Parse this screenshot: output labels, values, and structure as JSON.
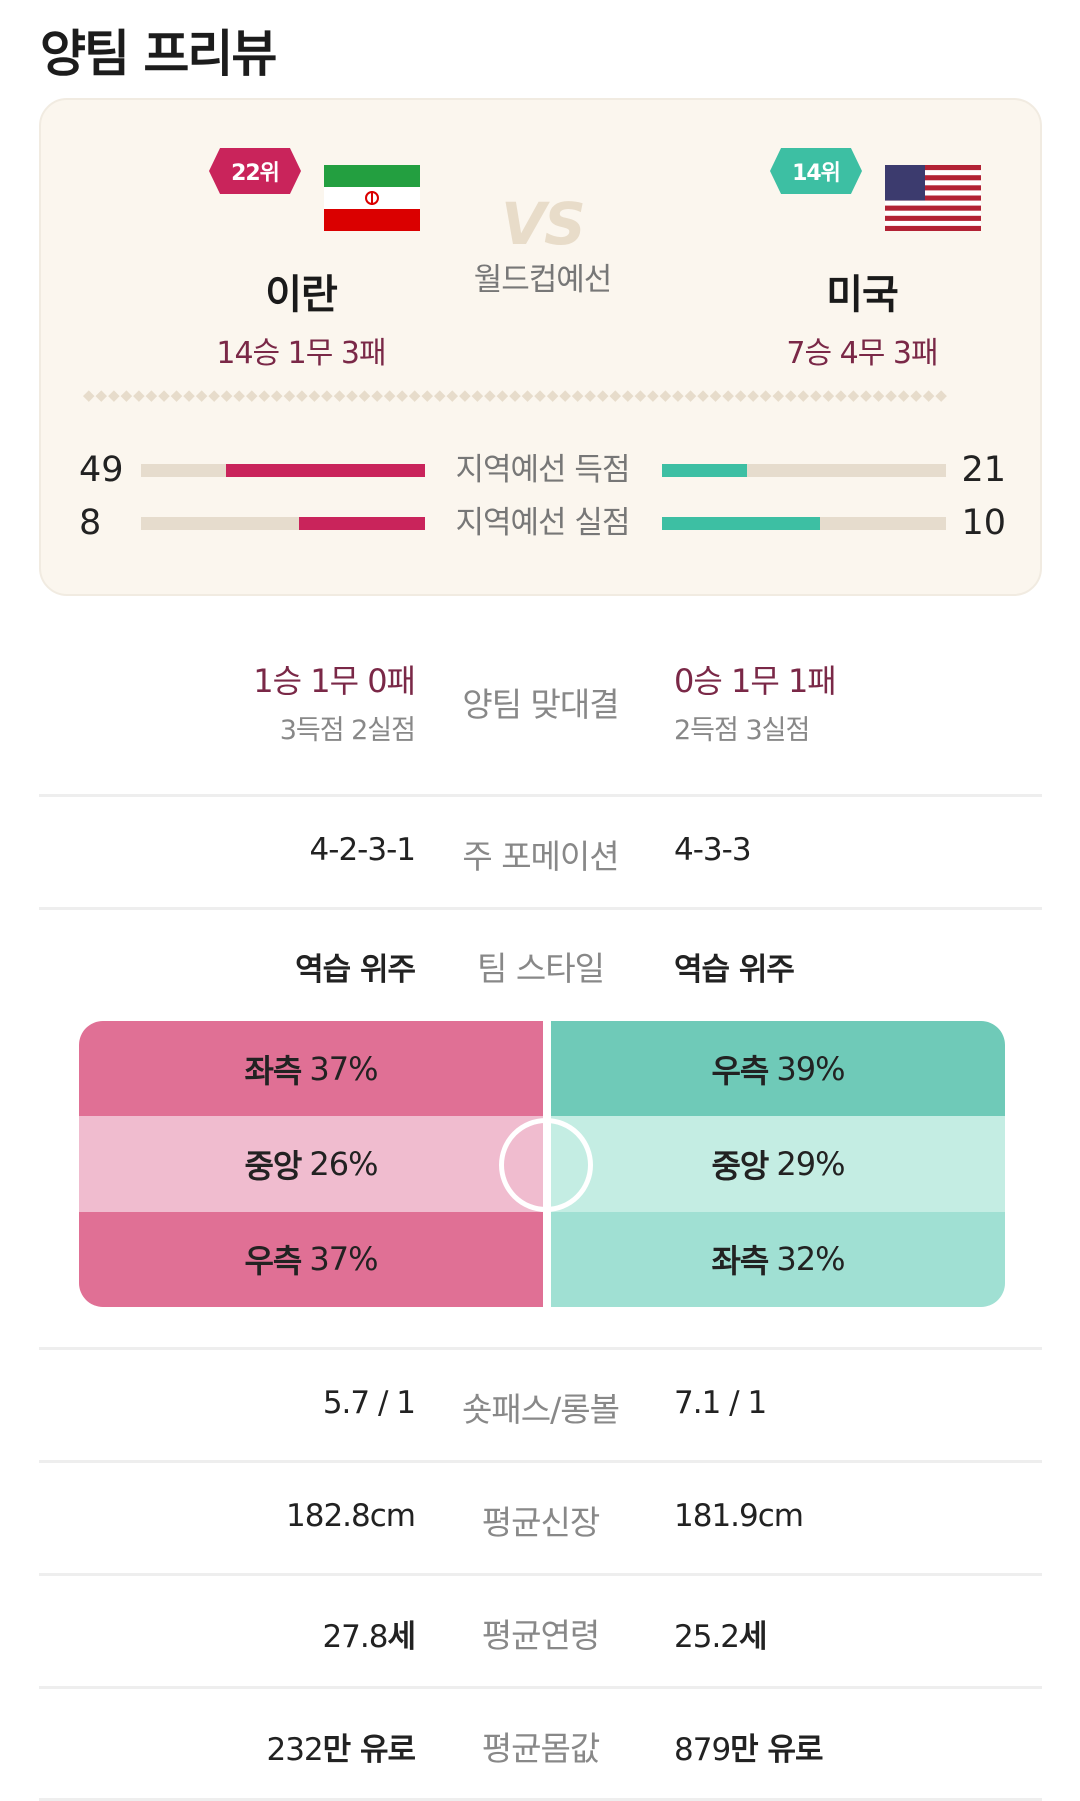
{
  "page_title": "양팀 프리뷰",
  "matchup": {
    "vs_text": "VS",
    "match_type": "월드컵예선",
    "home": {
      "rank": "22위",
      "name": "이란",
      "record": "14승 1무 3패",
      "flag_icon": "iran-flag-icon",
      "color": "#c9245b"
    },
    "away": {
      "rank": "14위",
      "name": "미국",
      "record": "7승 4무 3패",
      "flag_icon": "usa-flag-icon",
      "color": "#3dbfa3"
    },
    "stats": [
      {
        "label": "지역예선 득점",
        "home": "49",
        "away": "21",
        "home_value": 49,
        "away_value": 21
      },
      {
        "label": "지역예선 실점",
        "home": "8",
        "away": "10",
        "home_value": 8,
        "away_value": 10
      }
    ]
  },
  "head_to_head": {
    "label": "양팀 맞대결",
    "home_record": "1승 1무 0패",
    "home_goals": "3득점 2실점",
    "away_record": "0승 1무 1패",
    "away_goals": "2득점 3실점"
  },
  "comparisons": {
    "formation": {
      "label": "주 포메이션",
      "home": "4-2-3-1",
      "away": "4-3-3"
    },
    "team_style": {
      "label": "팀 스타일",
      "home": "역습 위주",
      "away": "역습 위주"
    },
    "pass_ratio": {
      "label": "숏패스/롱볼",
      "home": "5.7 / 1",
      "away": "7.1 / 1"
    },
    "avg_height": {
      "label": "평균신장",
      "home": "182.8cm",
      "away": "181.9cm"
    },
    "avg_age": {
      "label": "평균연령",
      "home_num": "27.8",
      "home_unit": "세",
      "away_num": "25.2",
      "away_unit": "세"
    },
    "avg_value": {
      "label": "평균몸값",
      "home_num": "232",
      "home_unit": "만 유로",
      "away_num": "879",
      "away_unit": "만 유로"
    }
  },
  "attack_direction": {
    "home": [
      {
        "side": "좌측",
        "pct": "37%",
        "color": "#e07095"
      },
      {
        "side": "중앙",
        "pct": "26%",
        "color": "#f0bccf"
      },
      {
        "side": "우측",
        "pct": "37%",
        "color": "#e07095"
      }
    ],
    "away": [
      {
        "side": "우측",
        "pct": "39%",
        "color": "#6fcab8"
      },
      {
        "side": "중앙",
        "pct": "29%",
        "color": "#c4ede3"
      },
      {
        "side": "좌측",
        "pct": "32%",
        "color": "#a0e0d3"
      }
    ]
  }
}
